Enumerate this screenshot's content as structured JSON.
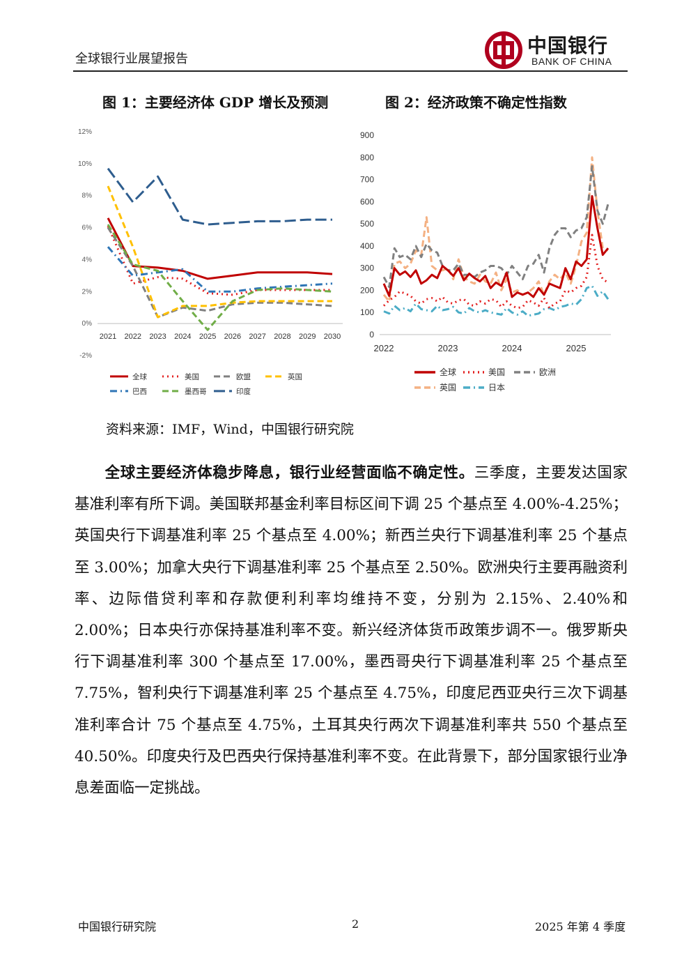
{
  "header": {
    "report_title": "全球银行业展望报告",
    "logo_cn": "中国银行",
    "logo_en": "BANK OF CHINA"
  },
  "fig1": {
    "title": "图 1：主要经济体 GDP 增长及预测",
    "chart_data": {
      "type": "line",
      "x": [
        "2021",
        "2022",
        "2023",
        "2024",
        "2025",
        "2026",
        "2027",
        "2028",
        "2029",
        "2030"
      ],
      "yticks": [
        "12%",
        "10%",
        "8%",
        "6%",
        "4%",
        "2%",
        "0%",
        "-2%"
      ],
      "ylim": [
        -2,
        12
      ],
      "grid": false,
      "legend_position": "bottom",
      "series": [
        {
          "name": "全球",
          "color": "#c00000",
          "style": "solid",
          "values": [
            6.6,
            3.6,
            3.5,
            3.3,
            2.8,
            3.0,
            3.2,
            3.2,
            3.2,
            3.1
          ]
        },
        {
          "name": "美国",
          "color": "#e32020",
          "style": "dotted",
          "values": [
            6.1,
            2.5,
            2.9,
            2.8,
            1.9,
            1.8,
            2.1,
            2.1,
            2.1,
            2.1
          ]
        },
        {
          "name": "欧盟",
          "color": "#808080",
          "style": "dashed",
          "values": [
            6.0,
            3.6,
            0.4,
            1.0,
            0.8,
            1.2,
            1.3,
            1.3,
            1.2,
            1.1
          ]
        },
        {
          "name": "英国",
          "color": "#ffc000",
          "style": "dashed",
          "values": [
            8.6,
            4.8,
            0.4,
            1.1,
            1.1,
            1.3,
            1.4,
            1.4,
            1.4,
            1.4
          ]
        },
        {
          "name": "巴西",
          "color": "#2e75b6",
          "style": "dashdot",
          "values": [
            4.8,
            3.0,
            3.2,
            3.4,
            2.0,
            2.0,
            2.2,
            2.3,
            2.4,
            2.5
          ]
        },
        {
          "name": "墨西哥",
          "color": "#70ad47",
          "style": "dashed",
          "values": [
            6.2,
            3.7,
            3.3,
            1.4,
            -0.4,
            1.4,
            2.1,
            2.2,
            2.1,
            2.0
          ]
        },
        {
          "name": "印度",
          "color": "#2e5d8e",
          "style": "longdash",
          "values": [
            9.7,
            7.6,
            9.2,
            6.5,
            6.2,
            6.3,
            6.4,
            6.4,
            6.5,
            6.5
          ]
        }
      ]
    }
  },
  "fig2": {
    "title": "图 2：经济政策不确定性指数",
    "chart_data": {
      "type": "line",
      "x_range": [
        "2022-01",
        "2025-09"
      ],
      "xticks": [
        "2022",
        "2023",
        "2024",
        "2025"
      ],
      "yticks": [
        "900",
        "800",
        "700",
        "600",
        "500",
        "400",
        "300",
        "200",
        "100",
        "0"
      ],
      "ylim": [
        0,
        900
      ],
      "grid": false,
      "legend_position": "bottom",
      "series": [
        {
          "name": "全球",
          "color": "#c00000",
          "style": "solid",
          "values": [
            230,
            175,
            300,
            270,
            285,
            260,
            290,
            230,
            245,
            270,
            255,
            310,
            290,
            265,
            300,
            245,
            275,
            255,
            240,
            265,
            210,
            235,
            220,
            280,
            170,
            190,
            180,
            190,
            170,
            210,
            180,
            230,
            220,
            210,
            300,
            250,
            330,
            310,
            340,
            625,
            480,
            360,
            390
          ]
        },
        {
          "name": "美国",
          "color": "#e32020",
          "style": "dotted",
          "values": [
            130,
            155,
            170,
            195,
            185,
            175,
            150,
            140,
            160,
            165,
            150,
            170,
            145,
            140,
            155,
            160,
            135,
            130,
            150,
            140,
            160,
            155,
            125,
            150,
            130,
            120,
            125,
            155,
            145,
            130,
            165,
            120,
            140,
            150,
            200,
            190,
            210,
            220,
            260,
            450,
            310,
            250,
            235
          ]
        },
        {
          "name": "欧洲",
          "color": "#808080",
          "style": "dashed",
          "values": [
            260,
            215,
            390,
            350,
            360,
            340,
            400,
            350,
            410,
            380,
            370,
            310,
            290,
            290,
            320,
            270,
            270,
            260,
            280,
            290,
            310,
            310,
            300,
            270,
            310,
            280,
            250,
            310,
            320,
            360,
            280,
            390,
            450,
            480,
            480,
            440,
            470,
            480,
            530,
            760,
            560,
            500,
            590
          ]
        },
        {
          "name": "英国",
          "color": "#f4b183",
          "style": "dashed",
          "values": [
            180,
            150,
            320,
            330,
            300,
            320,
            380,
            360,
            530,
            310,
            290,
            290,
            300,
            250,
            340,
            260,
            240,
            230,
            270,
            240,
            230,
            280,
            200,
            250,
            190,
            200,
            180,
            190,
            210,
            240,
            180,
            240,
            270,
            250,
            280,
            230,
            310,
            420,
            460,
            800,
            560,
            390,
            380
          ]
        },
        {
          "name": "日本",
          "color": "#4bacc6",
          "style": "dashdot",
          "values": [
            105,
            95,
            130,
            110,
            120,
            105,
            140,
            115,
            110,
            105,
            130,
            110,
            115,
            125,
            100,
            95,
            120,
            105,
            100,
            110,
            100,
            95,
            90,
            120,
            100,
            90,
            105,
            85,
            90,
            95,
            115,
            120,
            110,
            125,
            130,
            140,
            135,
            160,
            210,
            220,
            175,
            195,
            160
          ]
        }
      ]
    }
  },
  "source_note": "资料来源：IMF，Wind，中国银行研究院",
  "body": {
    "lead_bold": "全球主要经济体稳步降息，银行业经营面临不确定性。",
    "text": "三季度，主要发达国家基准利率有所下调。美国联邦基金利率目标区间下调 25 个基点至 4.00%-4.25%；英国央行下调基准利率 25 个基点至 4.00%；新西兰央行下调基准利率 25 个基点至 3.00%；加拿大央行下调基准利率 25 个基点至 2.50%。欧洲央行主要再融资利率、边际借贷利率和存款便利利率均维持不变，分别为 2.15%、2.40%和 2.00%；日本央行亦保持基准利率不变。新兴经济体货币政策步调不一。俄罗斯央行下调基准利率 300 个基点至 17.00%，墨西哥央行下调基准利率 25 个基点至 7.75%，智利央行下调基准利率 25 个基点至 4.75%，印度尼西亚央行三次下调基准利率合计 75 个基点至 4.75%，土耳其央行两次下调基准利率共 550 个基点至 40.50%。印度央行及巴西央行保持基准利率不变。在此背景下，部分国家银行业净息差面临一定挑战。"
  },
  "footer": {
    "left": "中国银行研究院",
    "page": "2",
    "right": "2025 年第 4 季度"
  }
}
